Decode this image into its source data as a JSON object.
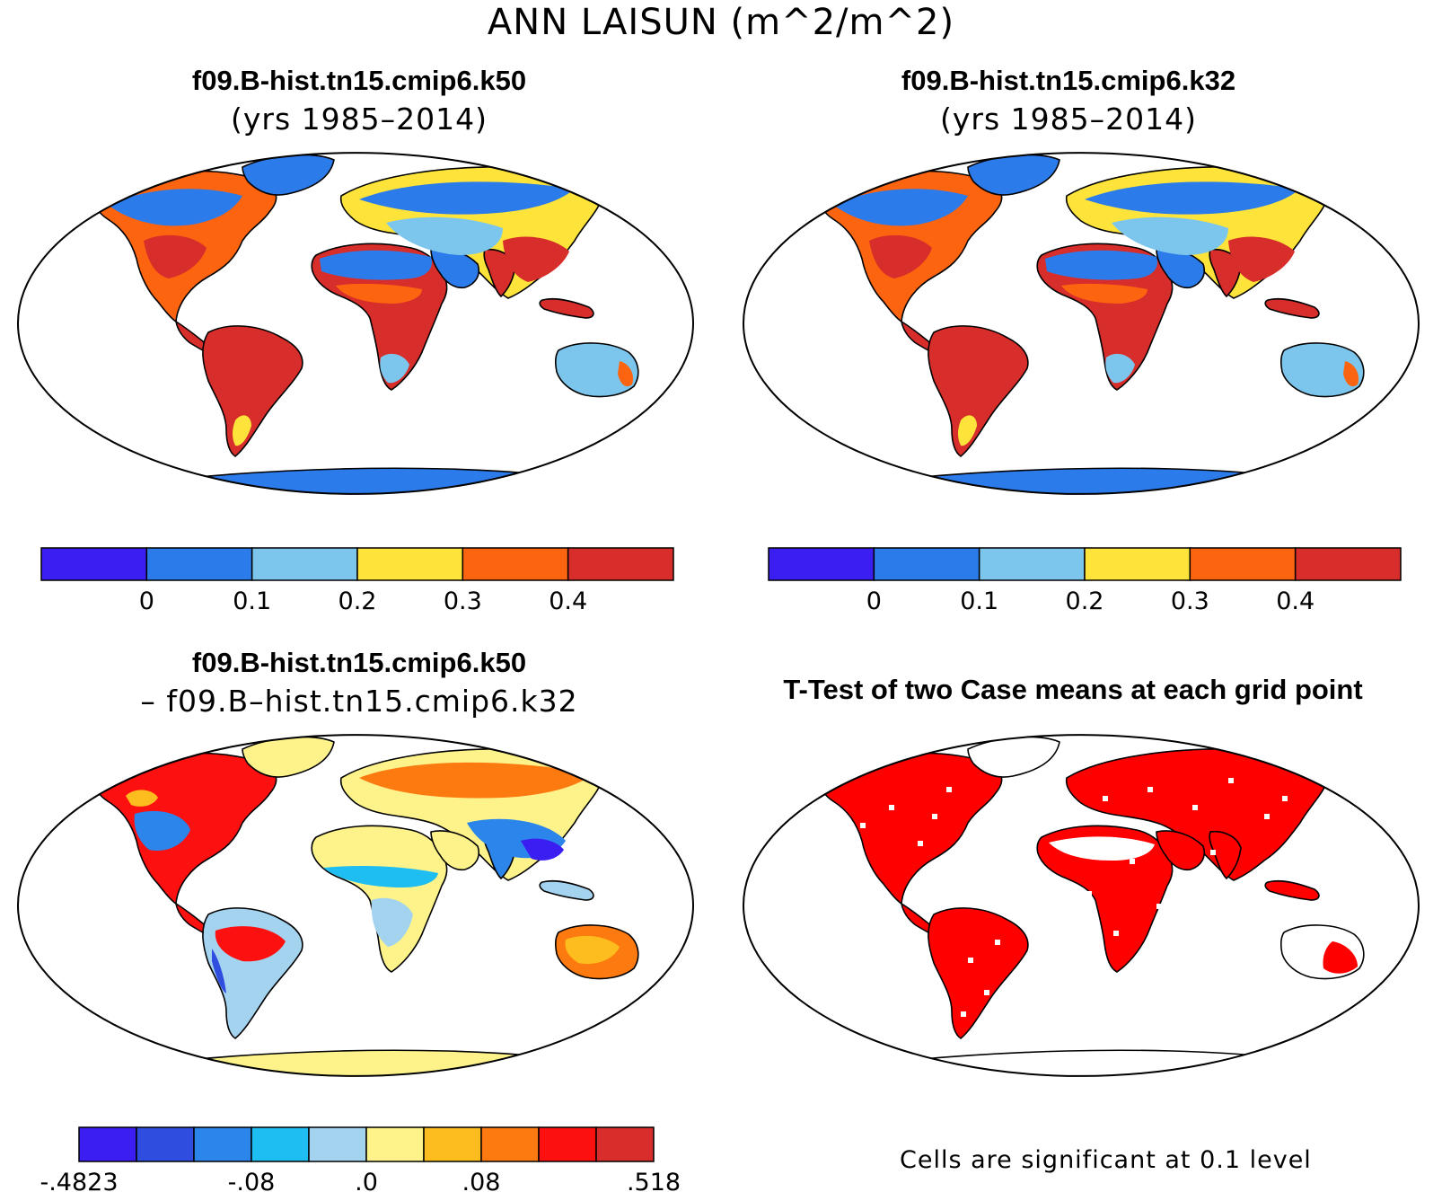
{
  "title": "ANN LAISUN (m^2/m^2)",
  "panels": [
    {
      "title": "f09.B-hist.tn15.cmip6.k50",
      "subtitle": "(yrs 1985–2014)",
      "kind": "mean"
    },
    {
      "title": "f09.B-hist.tn15.cmip6.k32",
      "subtitle": "(yrs 1985–2014)",
      "kind": "mean"
    },
    {
      "title": "f09.B-hist.tn15.cmip6.k50",
      "subtitle": "– f09.B–hist.tn15.cmip6.k32",
      "kind": "difference"
    },
    {
      "title": "T-Test of two Case means at each grid point",
      "subtitle": "",
      "kind": "ttest"
    }
  ],
  "colorbars": {
    "mean": {
      "colors": [
        "#3b1ef2",
        "#2c7bea",
        "#7cc6ee",
        "#fde33a",
        "#fc6410",
        "#d72d2b"
      ],
      "labels": [
        "0",
        "0.1",
        "0.2",
        "0.3",
        "0.4"
      ]
    },
    "difference": {
      "colors": [
        "#3b1ef2",
        "#2f4ee0",
        "#2c85ea",
        "#1ebdf2",
        "#a4d3f0",
        "#fdf38a",
        "#fdbd1e",
        "#fc7a10",
        "#fc1010",
        "#d72d2b"
      ],
      "labels": [
        "-.4823",
        "-.08",
        ".0",
        ".08",
        ".518"
      ]
    }
  },
  "ttest": {
    "significant_color": "#ff0000",
    "note": "Cells are significant at 0.1 level"
  }
}
